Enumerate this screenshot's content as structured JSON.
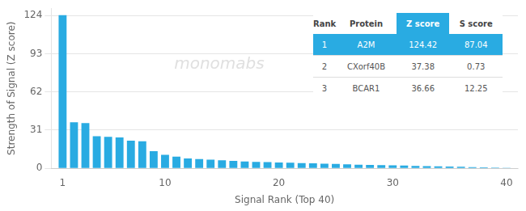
{
  "chart_data": {
    "type": "bar",
    "x": [
      1,
      2,
      3,
      4,
      5,
      6,
      7,
      8,
      9,
      10,
      11,
      12,
      13,
      14,
      15,
      16,
      17,
      18,
      19,
      20,
      21,
      22,
      23,
      24,
      25,
      26,
      27,
      28,
      29,
      30,
      31,
      32,
      33,
      34,
      35,
      36,
      37,
      38,
      39,
      40
    ],
    "values": [
      124.42,
      37.38,
      36.66,
      26.0,
      25.5,
      25.0,
      22.5,
      22.0,
      14.0,
      11.0,
      9.5,
      8.0,
      7.5,
      7.0,
      6.5,
      6.0,
      5.5,
      5.2,
      5.0,
      4.8,
      4.5,
      4.2,
      4.0,
      3.8,
      3.5,
      3.2,
      3.0,
      2.8,
      2.6,
      2.4,
      2.2,
      2.0,
      1.8,
      1.6,
      1.4,
      1.2,
      1.0,
      0.8,
      0.6,
      0.4
    ],
    "color": "#29abe2",
    "x_label": "Signal Rank (Top 40)",
    "y_label": "Strength of Signal (Z score)",
    "xlim": [
      0,
      41
    ],
    "xticks": [
      1,
      10,
      20,
      30,
      40
    ],
    "ylim": [
      0,
      130
    ],
    "yticks": [
      0,
      31,
      62,
      93,
      124
    ],
    "grid": "y",
    "annotation": {
      "text": "monomabs",
      "color": "#e0e0e0"
    },
    "table": {
      "columns": [
        "Rank",
        "Protein",
        "Z score",
        "S score"
      ],
      "rows": [
        [
          "1",
          "A2M",
          "124.42",
          "87.04"
        ],
        [
          "2",
          "CXorf40B",
          "37.38",
          "0.73"
        ],
        [
          "3",
          "BCAR1",
          "36.66",
          "12.25"
        ]
      ],
      "color": "#29abe2"
    }
  }
}
